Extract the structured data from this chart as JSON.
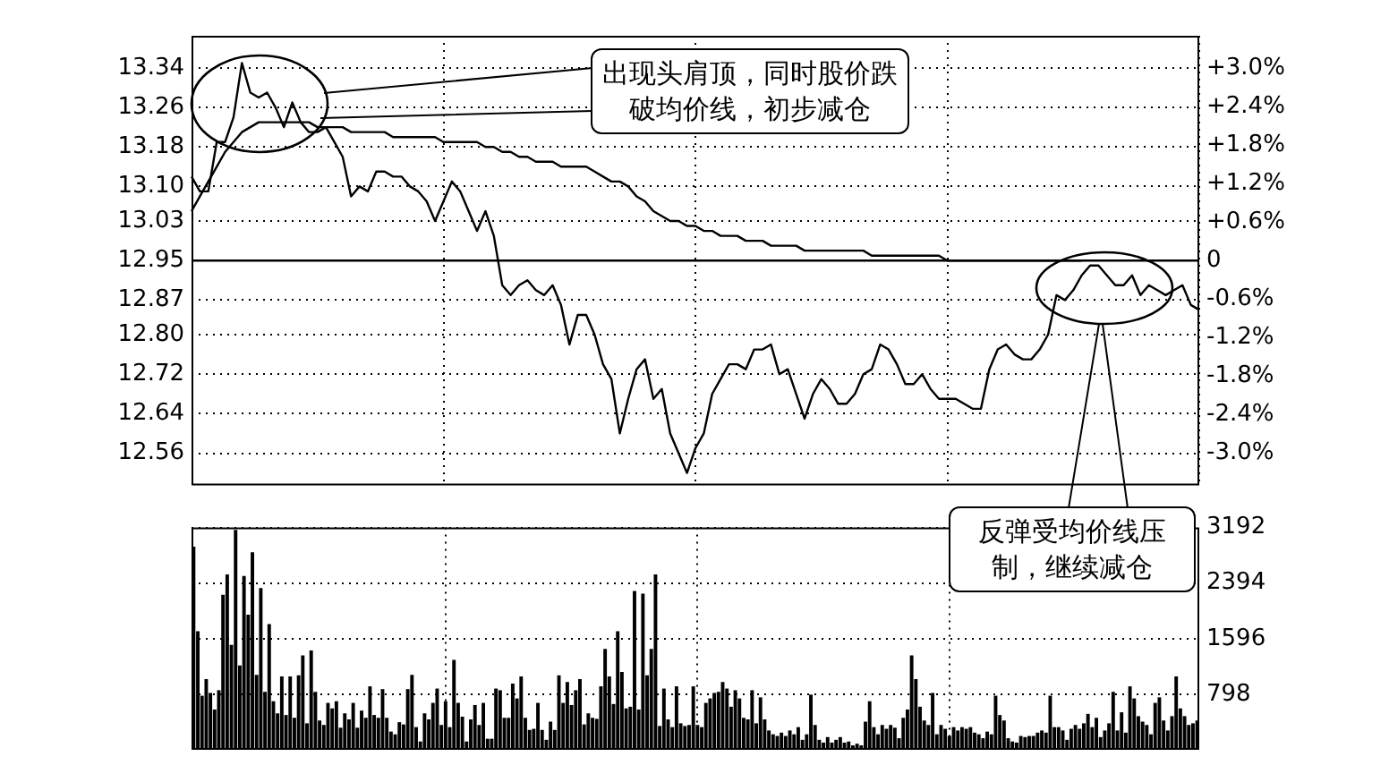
{
  "chart_data": [
    {
      "type": "line",
      "categories": [
        null,
        null,
        null,
        null,
        null,
        null,
        null,
        null,
        null,
        null,
        null,
        null,
        null,
        null,
        null,
        null,
        null,
        null,
        null,
        null,
        null,
        null,
        null,
        null,
        null,
        null,
        null,
        null,
        null,
        null,
        null,
        null,
        null,
        null,
        null,
        null,
        null,
        null,
        null,
        null,
        null,
        null,
        null,
        null,
        null,
        null,
        null,
        null,
        null,
        null,
        null,
        null,
        null,
        null,
        null,
        null,
        null,
        null,
        null,
        null,
        null,
        null,
        null,
        null,
        null,
        null,
        null,
        null,
        null,
        null,
        null,
        null,
        null,
        null,
        null,
        null,
        null,
        null,
        null,
        null,
        null,
        null,
        null,
        null,
        null,
        null,
        null,
        null,
        null,
        null,
        null,
        null,
        null,
        null,
        null,
        null,
        null,
        null,
        null,
        null,
        null,
        null,
        null,
        null,
        null,
        null,
        null,
        null,
        null,
        null,
        null,
        null,
        null,
        null,
        null,
        null,
        null,
        null,
        null,
        null,
        null
      ],
      "ylim": [
        12.495,
        13.405
      ],
      "yticks": [
        13.34,
        13.26,
        13.18,
        {
          "value": 13.1,
          "label": "13.10"
        },
        13.03,
        12.95,
        12.87,
        {
          "value": 12.8,
          "label": "12.80"
        },
        12.72,
        12.64,
        12.56
      ],
      "y2lim": [
        -3.51,
        3.51
      ],
      "y2ticks": [
        {
          "value": 3.0,
          "label": "+3.0%"
        },
        {
          "value": 2.4,
          "label": "+2.4%"
        },
        {
          "value": 1.8,
          "label": "+1.8%"
        },
        {
          "value": 1.2,
          "label": "+1.2%"
        },
        {
          "value": 0.6,
          "label": "+0.6%"
        },
        0,
        {
          "value": -0.6,
          "label": "-0.6%"
        },
        {
          "value": -1.2,
          "label": "-1.2%"
        },
        {
          "value": -1.8,
          "label": "-1.8%"
        },
        {
          "value": -2.4,
          "label": "-2.4%"
        },
        {
          "value": -3.0,
          "label": "-3.0%"
        }
      ],
      "tick_labels": "y",
      "grid": true,
      "legend": false,
      "marker": "none",
      "line_style": "solid",
      "ref_lines": [
        {
          "axis": "y",
          "value": 12.95,
          "color": "#000000",
          "line_style": "solid"
        }
      ],
      "annotations": [
        "出现头肩顶，同时股价跌破均价线，初步减仓",
        "反弹受均价线压制，继续减仓"
      ],
      "series": [
        {
          "color": "#000000",
          "values": [
            13.12,
            13.09,
            13.09,
            13.19,
            13.19,
            13.24,
            13.35,
            13.29,
            13.28,
            13.29,
            13.26,
            13.22,
            13.27,
            13.23,
            13.21,
            13.21,
            13.22,
            13.19,
            13.16,
            13.08,
            13.1,
            13.09,
            13.13,
            13.13,
            13.12,
            13.12,
            13.1,
            13.09,
            13.07,
            13.03,
            13.07,
            13.11,
            13.09,
            13.05,
            13.01,
            13.05,
            13.0,
            12.9,
            12.88,
            12.9,
            12.91,
            12.89,
            12.88,
            12.9,
            12.86,
            12.78,
            12.84,
            12.84,
            12.8,
            12.74,
            12.71,
            12.6,
            12.67,
            12.73,
            12.75,
            12.67,
            12.69,
            12.6,
            12.56,
            12.52,
            12.57,
            12.6,
            12.68,
            12.71,
            12.74,
            12.74,
            12.73,
            12.77,
            12.77,
            12.78,
            12.72,
            12.73,
            12.68,
            12.63,
            12.68,
            12.71,
            12.69,
            12.66,
            12.66,
            12.68,
            12.72,
            12.73,
            12.78,
            12.77,
            12.74,
            12.7,
            12.7,
            12.72,
            12.69,
            12.67,
            12.67,
            12.67,
            12.66,
            12.65,
            12.65,
            12.73,
            12.77,
            12.78,
            12.76,
            12.75,
            12.75,
            12.77,
            12.8,
            12.88,
            12.87,
            12.89,
            12.92,
            12.94,
            12.94,
            12.92,
            12.9,
            12.9,
            12.92,
            12.88,
            12.9,
            12.89,
            12.88,
            12.89,
            12.9,
            12.86,
            12.85
          ]
        },
        {
          "color": "#000000",
          "values": [
            13.05,
            13.08,
            13.11,
            13.14,
            13.17,
            13.19,
            13.21,
            13.22,
            13.23,
            13.23,
            13.23,
            13.23,
            13.23,
            13.23,
            13.23,
            13.22,
            13.22,
            13.22,
            13.22,
            13.21,
            13.21,
            13.21,
            13.21,
            13.21,
            13.2,
            13.2,
            13.2,
            13.2,
            13.2,
            13.2,
            13.19,
            13.19,
            13.19,
            13.19,
            13.19,
            13.18,
            13.18,
            13.17,
            13.17,
            13.16,
            13.16,
            13.15,
            13.15,
            13.15,
            13.14,
            13.14,
            13.14,
            13.14,
            13.13,
            13.12,
            13.11,
            13.11,
            13.1,
            13.08,
            13.07,
            13.05,
            13.04,
            13.03,
            13.03,
            13.02,
            13.02,
            13.01,
            13.01,
            13.0,
            13.0,
            13.0,
            12.99,
            12.99,
            12.99,
            12.98,
            12.98,
            12.98,
            12.98,
            12.97,
            12.97,
            12.97,
            12.97,
            12.97,
            12.97,
            12.97,
            12.97,
            12.96,
            12.96,
            12.96,
            12.96,
            12.96,
            12.96,
            12.96,
            12.96,
            12.96,
            12.95,
            12.95,
            12.95,
            12.95,
            12.95,
            12.95,
            12.95,
            12.95,
            12.95,
            12.95,
            12.95,
            12.95,
            12.95,
            12.95,
            12.95,
            12.95,
            12.95,
            null,
            null,
            null,
            null,
            null,
            null,
            null,
            null,
            null,
            null,
            null,
            null,
            null,
            null
          ]
        }
      ]
    },
    {
      "type": "bar",
      "categories": [
        null,
        null,
        null,
        null,
        null,
        null,
        null,
        null,
        null,
        null,
        null,
        null,
        null,
        null,
        null,
        null,
        null,
        null,
        null,
        null,
        null,
        null,
        null,
        null,
        null,
        null,
        null,
        null,
        null,
        null,
        null,
        null,
        null,
        null,
        null,
        null,
        null,
        null,
        null,
        null,
        null,
        null,
        null,
        null,
        null,
        null,
        null,
        null,
        null,
        null,
        null,
        null,
        null,
        null,
        null,
        null,
        null,
        null,
        null,
        null,
        null,
        null,
        null,
        null,
        null,
        null,
        null,
        null,
        null,
        null,
        null,
        null,
        null,
        null,
        null,
        null,
        null,
        null,
        null,
        null,
        null,
        null,
        null,
        null,
        null,
        null,
        null,
        null,
        null,
        null,
        null,
        null,
        null,
        null,
        null,
        null,
        null,
        null,
        null,
        null,
        null,
        null,
        null,
        null,
        null,
        null,
        null,
        null,
        null,
        null,
        null,
        null,
        null,
        null,
        null,
        null,
        null,
        null,
        null,
        null,
        null,
        null,
        null,
        null,
        null,
        null,
        null,
        null,
        null,
        null,
        null,
        null,
        null,
        null,
        null,
        null,
        null,
        null,
        null,
        null,
        null,
        null,
        null,
        null,
        null,
        null,
        null,
        null,
        null,
        null,
        null,
        null,
        null,
        null,
        null,
        null,
        null,
        null,
        null,
        null,
        null,
        null,
        null,
        null,
        null,
        null,
        null,
        null,
        null,
        null,
        null,
        null,
        null,
        null,
        null,
        null,
        null,
        null,
        null,
        null,
        null,
        null,
        null,
        null,
        null,
        null,
        null,
        null,
        null,
        null,
        null,
        null,
        null,
        null,
        null,
        null,
        null,
        null,
        null,
        null,
        null,
        null,
        null,
        null,
        null,
        null,
        null,
        null,
        null,
        null,
        null,
        null,
        null,
        null,
        null,
        null,
        null,
        null,
        null,
        null,
        null,
        null,
        null,
        null,
        null,
        null,
        null,
        null,
        null,
        null,
        null,
        null,
        null,
        null,
        null,
        null,
        null,
        null,
        null,
        null
      ],
      "ylim": [
        0,
        3192
      ],
      "yticks": [
        798,
        1596,
        2394,
        3192
      ],
      "tick_labels": "y",
      "grid": true,
      "legend": false,
      "color": "#000000",
      "values": [
        2907,
        1695,
        768,
        1006,
        808,
        570,
        847,
        2218,
        2511,
        1497,
        3150,
        1204,
        2487,
        1932,
        2827,
        1069,
        2313,
        824,
        1798,
        689,
        515,
        1045,
        491,
        1045,
        451,
        1061,
        1346,
        372,
        1418,
        824,
        412,
        348,
        665,
        586,
        689,
        309,
        515,
        428,
        665,
        309,
        554,
        451,
        903,
        491,
        451,
        863,
        451,
        253,
        214,
        388,
        356,
        863,
        1069,
        317,
        111,
        515,
        428,
        665,
        871,
        348,
        689,
        317,
        1283,
        665,
        467,
        111,
        428,
        634,
        348,
        665,
        150,
        150,
        871,
        847,
        451,
        451,
        942,
        729,
        1045,
        451,
        277,
        293,
        665,
        277,
        135,
        396,
        277,
        1061,
        665,
        966,
        634,
        847,
        1006,
        356,
        515,
        451,
        436,
        903,
        1441,
        1045,
        649,
        1695,
        1109,
        586,
        610,
        2273,
        570,
        2233,
        1061,
        1441,
        2511,
        333,
        871,
        428,
        317,
        903,
        372,
        333,
        348,
        903,
        348,
        317,
        665,
        729,
        808,
        824,
        966,
        871,
        610,
        847,
        729,
        451,
        428,
        847,
        372,
        745,
        428,
        269,
        214,
        190,
        238,
        190,
        269,
        214,
        317,
        135,
        214,
        784,
        348,
        135,
        95,
        174,
        95,
        135,
        174,
        95,
        111,
        55,
        79,
        55,
        396,
        689,
        317,
        214,
        348,
        293,
        348,
        309,
        158,
        451,
        570,
        1346,
        1006,
        610,
        412,
        348,
        808,
        214,
        348,
        293,
        190,
        317,
        269,
        317,
        293,
        317,
        238,
        214,
        158,
        253,
        214,
        768,
        491,
        412,
        158,
        111,
        95,
        190,
        174,
        190,
        190,
        238,
        269,
        238,
        768,
        317,
        317,
        269,
        135,
        293,
        348,
        293,
        372,
        507,
        317,
        451,
        174,
        269,
        372,
        824,
        269,
        530,
        238,
        903,
        729,
        475,
        396,
        348,
        214,
        665,
        745,
        412,
        269,
        475,
        1045,
        586,
        475,
        348,
        372,
        412
      ]
    }
  ]
}
